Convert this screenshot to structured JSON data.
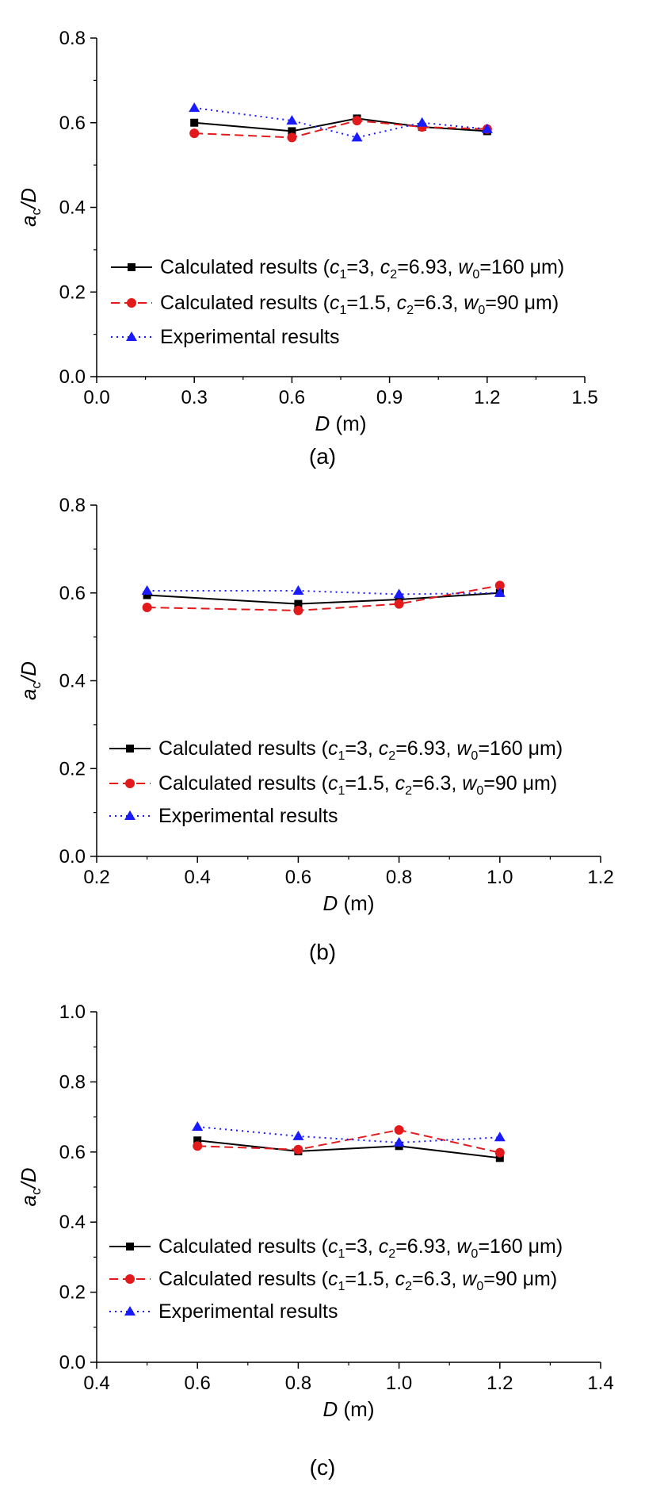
{
  "chart_data": [
    {
      "type": "line",
      "panel_label": "(a)",
      "xlabel_var": "D",
      "xlabel_unit": " (m)",
      "ylabel_var": "a",
      "ylabel_sub": "c",
      "ylabel_rest": "/D",
      "xlim": [
        0.0,
        1.5
      ],
      "ylim": [
        0.0,
        0.8
      ],
      "xticks": [
        "0.0",
        "0.3",
        "0.6",
        "0.9",
        "1.2",
        "1.5"
      ],
      "yticks": [
        "0.0",
        "0.2",
        "0.4",
        "0.6",
        "0.8"
      ],
      "series": [
        {
          "name": "Calculated results (c1=3, c2=6.93, w0=160 μm)",
          "color": "#000000",
          "marker": "square",
          "dash": "solid",
          "x": [
            0.3,
            0.6,
            0.8,
            1.0,
            1.2
          ],
          "values": [
            0.6,
            0.58,
            0.61,
            0.59,
            0.58
          ]
        },
        {
          "name": "Calculated results (c1=1.5, c2=6.3, w0=90 μm)",
          "color": "#e31a1c",
          "marker": "circle",
          "dash": "dashed",
          "x": [
            0.3,
            0.6,
            0.8,
            1.0,
            1.2
          ],
          "values": [
            0.575,
            0.565,
            0.605,
            0.59,
            0.585
          ]
        },
        {
          "name": "Experimental results",
          "color": "#1a1aff",
          "marker": "triangle",
          "dash": "dotted",
          "x": [
            0.3,
            0.6,
            0.8,
            1.0,
            1.2
          ],
          "values": [
            0.635,
            0.605,
            0.565,
            0.6,
            0.585
          ]
        }
      ]
    },
    {
      "type": "line",
      "panel_label": "(b)",
      "xlabel_var": "D",
      "xlabel_unit": " (m)",
      "ylabel_var": "a",
      "ylabel_sub": "c",
      "ylabel_rest": "/D",
      "xlim": [
        0.2,
        1.2
      ],
      "ylim": [
        0.0,
        0.8
      ],
      "xticks": [
        "0.2",
        "0.4",
        "0.6",
        "0.8",
        "1.0",
        "1.2"
      ],
      "yticks": [
        "0.0",
        "0.2",
        "0.4",
        "0.6",
        "0.8"
      ],
      "series": [
        {
          "name": "Calculated results (c1=3, c2=6.93, w0=160 μm)",
          "color": "#000000",
          "marker": "square",
          "dash": "solid",
          "x": [
            0.3,
            0.6,
            0.8,
            1.0
          ],
          "values": [
            0.595,
            0.575,
            0.585,
            0.6
          ]
        },
        {
          "name": "Calculated results (c1=1.5, c2=6.3, w0=90 μm)",
          "color": "#e31a1c",
          "marker": "circle",
          "dash": "dashed",
          "x": [
            0.3,
            0.6,
            0.8,
            1.0
          ],
          "values": [
            0.567,
            0.56,
            0.575,
            0.617
          ]
        },
        {
          "name": "Experimental results",
          "color": "#1a1aff",
          "marker": "triangle",
          "dash": "dotted",
          "x": [
            0.3,
            0.6,
            0.8,
            1.0
          ],
          "values": [
            0.605,
            0.605,
            0.597,
            0.6
          ]
        }
      ]
    },
    {
      "type": "line",
      "panel_label": "(c)",
      "xlabel_var": "D",
      "xlabel_unit": " (m)",
      "ylabel_var": "a",
      "ylabel_sub": "c",
      "ylabel_rest": "/D",
      "xlim": [
        0.4,
        1.4
      ],
      "ylim": [
        0.0,
        1.0
      ],
      "xticks": [
        "0.4",
        "0.6",
        "0.8",
        "1.0",
        "1.2",
        "1.4"
      ],
      "yticks": [
        "0.0",
        "0.2",
        "0.4",
        "0.6",
        "0.8",
        "1.0"
      ],
      "series": [
        {
          "name": "Calculated results (c1=3, c2=6.93, w0=160 μm)",
          "color": "#000000",
          "marker": "square",
          "dash": "solid",
          "x": [
            0.6,
            0.8,
            1.0,
            1.2
          ],
          "values": [
            0.633,
            0.602,
            0.617,
            0.583
          ]
        },
        {
          "name": "Calculated results (c1=1.5, c2=6.3, w0=90 μm)",
          "color": "#e31a1c",
          "marker": "circle",
          "dash": "dashed",
          "x": [
            0.6,
            0.8,
            1.0,
            1.2
          ],
          "values": [
            0.617,
            0.607,
            0.663,
            0.598
          ]
        },
        {
          "name": "Experimental results",
          "color": "#1a1aff",
          "marker": "triangle",
          "dash": "dotted",
          "x": [
            0.6,
            0.8,
            1.0,
            1.2
          ],
          "values": [
            0.672,
            0.645,
            0.627,
            0.642
          ]
        }
      ]
    }
  ],
  "legend": [
    {
      "pre": "Calculated results (",
      "v1": "c",
      "s1": "1",
      "eq1": "=3, ",
      "v2": "c",
      "s2": "2",
      "eq2": "=6.93, ",
      "v3": "w",
      "s3": "0",
      "eq3": "=160 μm)"
    },
    {
      "pre": "Calculated results (",
      "v1": "c",
      "s1": "1",
      "eq1": "=1.5, ",
      "v2": "c",
      "s2": "2",
      "eq2": "=6.3, ",
      "v3": "w",
      "s3": "0",
      "eq3": "=90 μm)"
    },
    {
      "pre": "Experimental results"
    }
  ]
}
